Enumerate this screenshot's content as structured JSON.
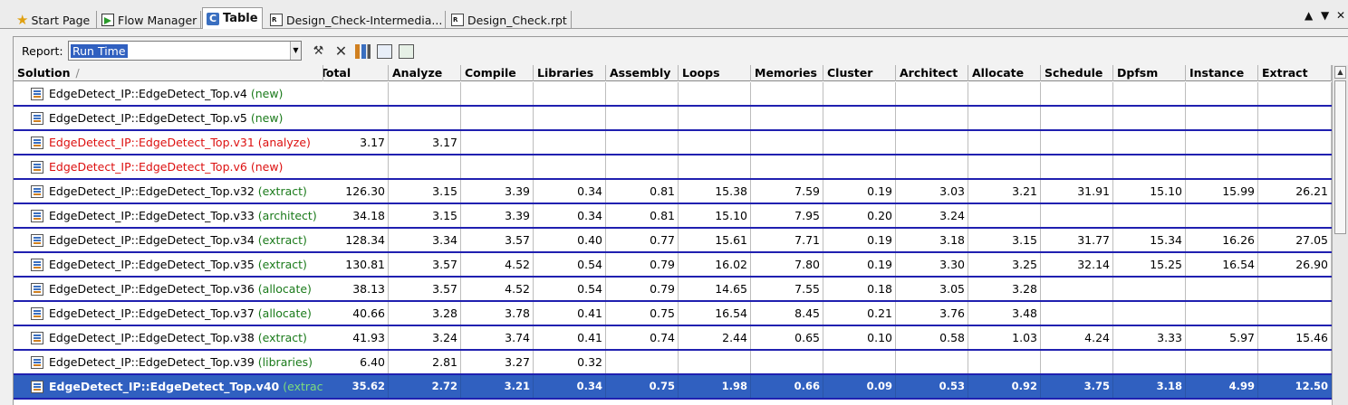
{
  "tabs": [
    {
      "label": "Start Page",
      "icon": "star-icon"
    },
    {
      "label": "Flow Manager",
      "icon": "flow-manager-icon"
    },
    {
      "label": "Table",
      "icon": "table-icon",
      "active": true
    },
    {
      "label": "Design_Check-Intermedia...",
      "icon": "report-file-icon"
    },
    {
      "label": "Design_Check.rpt",
      "icon": "report-file-icon"
    }
  ],
  "window_controls": {
    "maximize": "▲",
    "menu": "▼",
    "close": "✕"
  },
  "report": {
    "label": "Report:",
    "selected": "Run Time"
  },
  "toolbar_icons": [
    "tools-icon",
    "clear-icon",
    "chart-icon",
    "table-view-icon",
    "export-icon"
  ],
  "columns": [
    {
      "label": "Solution",
      "sort": "/"
    },
    {
      "label": "Total"
    },
    {
      "label": "Analyze"
    },
    {
      "label": "Compile"
    },
    {
      "label": "Libraries"
    },
    {
      "label": "Assembly"
    },
    {
      "label": "Loops"
    },
    {
      "label": "Memories"
    },
    {
      "label": "Cluster"
    },
    {
      "label": "Architect"
    },
    {
      "label": "Allocate"
    },
    {
      "label": "Schedule"
    },
    {
      "label": "Dpfsm"
    },
    {
      "label": "Instance"
    },
    {
      "label": "Extract"
    }
  ],
  "rows": [
    {
      "name": "EdgeDetect_IP::EdgeDetect_Top.v4",
      "status": "(new)",
      "red": false,
      "values": [
        "",
        "",
        "",
        "",
        "",
        "",
        "",
        "",
        "",
        "",
        "",
        "",
        "",
        ""
      ]
    },
    {
      "name": "EdgeDetect_IP::EdgeDetect_Top.v5",
      "status": "(new)",
      "red": false,
      "values": [
        "",
        "",
        "",
        "",
        "",
        "",
        "",
        "",
        "",
        "",
        "",
        "",
        "",
        ""
      ]
    },
    {
      "name": "EdgeDetect_IP::EdgeDetect_Top.v31",
      "status": "(analyze)",
      "red": true,
      "values": [
        "3.17",
        "3.17",
        "",
        "",
        "",
        "",
        "",
        "",
        "",
        "",
        "",
        "",
        "",
        ""
      ]
    },
    {
      "name": "EdgeDetect_IP::EdgeDetect_Top.v6",
      "status": "(new)",
      "red": true,
      "values": [
        "",
        "",
        "",
        "",
        "",
        "",
        "",
        "",
        "",
        "",
        "",
        "",
        "",
        ""
      ]
    },
    {
      "name": "EdgeDetect_IP::EdgeDetect_Top.v32",
      "status": "(extract)",
      "red": false,
      "values": [
        "126.30",
        "3.15",
        "3.39",
        "0.34",
        "0.81",
        "15.38",
        "7.59",
        "0.19",
        "3.03",
        "3.21",
        "31.91",
        "15.10",
        "15.99",
        "26.21"
      ]
    },
    {
      "name": "EdgeDetect_IP::EdgeDetect_Top.v33",
      "status": "(architect)",
      "red": false,
      "values": [
        "34.18",
        "3.15",
        "3.39",
        "0.34",
        "0.81",
        "15.10",
        "7.95",
        "0.20",
        "3.24",
        "",
        "",
        "",
        "",
        ""
      ]
    },
    {
      "name": "EdgeDetect_IP::EdgeDetect_Top.v34",
      "status": "(extract)",
      "red": false,
      "values": [
        "128.34",
        "3.34",
        "3.57",
        "0.40",
        "0.77",
        "15.61",
        "7.71",
        "0.19",
        "3.18",
        "3.15",
        "31.77",
        "15.34",
        "16.26",
        "27.05"
      ]
    },
    {
      "name": "EdgeDetect_IP::EdgeDetect_Top.v35",
      "status": "(extract)",
      "red": false,
      "values": [
        "130.81",
        "3.57",
        "4.52",
        "0.54",
        "0.79",
        "16.02",
        "7.80",
        "0.19",
        "3.30",
        "3.25",
        "32.14",
        "15.25",
        "16.54",
        "26.90"
      ]
    },
    {
      "name": "EdgeDetect_IP::EdgeDetect_Top.v36",
      "status": "(allocate)",
      "red": false,
      "values": [
        "38.13",
        "3.57",
        "4.52",
        "0.54",
        "0.79",
        "14.65",
        "7.55",
        "0.18",
        "3.05",
        "3.28",
        "",
        "",
        "",
        ""
      ]
    },
    {
      "name": "EdgeDetect_IP::EdgeDetect_Top.v37",
      "status": "(allocate)",
      "red": false,
      "values": [
        "40.66",
        "3.28",
        "3.78",
        "0.41",
        "0.75",
        "16.54",
        "8.45",
        "0.21",
        "3.76",
        "3.48",
        "",
        "",
        "",
        ""
      ]
    },
    {
      "name": "EdgeDetect_IP::EdgeDetect_Top.v38",
      "status": "(extract)",
      "red": false,
      "values": [
        "41.93",
        "3.24",
        "3.74",
        "0.41",
        "0.74",
        "2.44",
        "0.65",
        "0.10",
        "0.58",
        "1.03",
        "4.24",
        "3.33",
        "5.97",
        "15.46"
      ]
    },
    {
      "name": "EdgeDetect_IP::EdgeDetect_Top.v39",
      "status": "(libraries)",
      "red": false,
      "values": [
        "6.40",
        "2.81",
        "3.27",
        "0.32",
        "",
        "",
        "",
        "",
        "",
        "",
        "",
        "",
        "",
        ""
      ]
    },
    {
      "name": "EdgeDetect_IP::EdgeDetect_Top.v40",
      "status": "(extract)",
      "red": false,
      "selected": true,
      "values": [
        "35.62",
        "2.72",
        "3.21",
        "0.34",
        "0.75",
        "1.98",
        "0.66",
        "0.09",
        "0.53",
        "0.92",
        "3.75",
        "3.18",
        "4.99",
        "12.50"
      ]
    }
  ]
}
